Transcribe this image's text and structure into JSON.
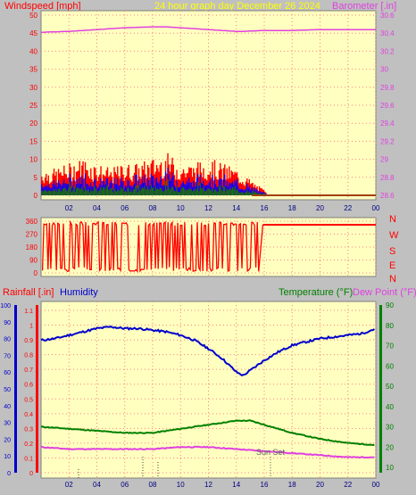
{
  "header": {
    "windspeed_label": "Windspeed [mph]",
    "title": "24 hour graph day   December 26 2024",
    "barometer_label": "Barometer [.in]"
  },
  "middle_panel": {
    "compass_labels": [
      "N",
      "W",
      "S",
      "E",
      "N"
    ]
  },
  "bottom_header": {
    "rainfall_label": "Rainfall [.in]",
    "humidity_label": "Humidity",
    "temperature_label": "Temperature (°F)",
    "dewpoint_label": "Dew Point (°F)"
  },
  "colors": {
    "plot_bg": "#ffffc0",
    "frame_bg": "#c0c0c0",
    "windspeed": "#ff0000",
    "windspeed_avg": "#0000ff",
    "windspeed_green": "#008000",
    "barometer": "#e040e0",
    "humidity": "#0000cc",
    "temperature": "#008000",
    "dewpoint": "#e040e0",
    "title": "#ffff00",
    "grid": "#ff8080"
  },
  "chart_data": [
    {
      "type": "area",
      "title": "24 hour graph day   December 26 2024",
      "x_ticks": [
        "02",
        "04",
        "06",
        "08",
        "10",
        "12",
        "14",
        "16",
        "18",
        "20",
        "22",
        "00"
      ],
      "y_left_ticks": [
        "0",
        "5",
        "10",
        "15",
        "20",
        "25",
        "30",
        "35",
        "40",
        "45",
        "50"
      ],
      "y_left_range": [
        0,
        50
      ],
      "y_left_label": "Windspeed [mph]",
      "y_right_ticks": [
        "28.6",
        "28.8",
        "29",
        "29.2",
        "29.4",
        "29.6",
        "29.8",
        "30",
        "30.2",
        "30.4",
        "30.6"
      ],
      "y_right_range": [
        28.6,
        30.6
      ],
      "y_right_label": "Barometer [.in]",
      "series": [
        {
          "name": "Windspeed",
          "axis": "left",
          "x_hours": [
            0,
            1,
            2,
            3,
            4,
            5,
            6,
            7,
            8,
            9,
            10,
            11,
            12,
            13,
            14,
            15,
            15.5,
            16,
            24
          ],
          "values": [
            5,
            5,
            6,
            7,
            6,
            5,
            6,
            6,
            7,
            8,
            6,
            6,
            7,
            6,
            5,
            3,
            2,
            1,
            0
          ]
        },
        {
          "name": "Barometer",
          "axis": "right",
          "x_hours": [
            0,
            2,
            4,
            6,
            8,
            9,
            10,
            12,
            14,
            14.5,
            16,
            18,
            20,
            22,
            24
          ],
          "values": [
            30.41,
            30.42,
            30.44,
            30.46,
            30.47,
            30.47,
            30.46,
            30.44,
            30.42,
            30.42,
            30.43,
            30.43,
            30.44,
            30.44,
            30.44
          ]
        }
      ],
      "grid": true
    },
    {
      "type": "scatter",
      "x_ticks": [
        "02",
        "04",
        "06",
        "08",
        "10",
        "12",
        "14",
        "16",
        "18",
        "20",
        "22",
        "00"
      ],
      "y_left_ticks": [
        "0",
        "90",
        "180",
        "270",
        "360"
      ],
      "y_left_range": [
        0,
        360
      ],
      "y_right_ticks": [
        "N",
        "W",
        "S",
        "E",
        "N"
      ],
      "series": [
        {
          "name": "Wind Direction",
          "x_hours": [
            0,
            0.5,
            1,
            1.5,
            2,
            2.5,
            3,
            3.5,
            4,
            4.5,
            5,
            5.5,
            6,
            6.5,
            7,
            7.5,
            8,
            8.5,
            9,
            9.5,
            10,
            10.5,
            11,
            11.5,
            12,
            12.5,
            13,
            13.5,
            14,
            14.5,
            15,
            15.5,
            16,
            17,
            18,
            19,
            20,
            21,
            22,
            23,
            24
          ],
          "values": [
            30,
            10,
            350,
            10,
            350,
            20,
            10,
            20,
            10,
            15,
            20,
            30,
            350,
            10,
            350,
            20,
            350,
            10,
            350,
            340,
            20,
            10,
            340,
            20,
            10,
            350,
            340,
            20,
            350,
            10,
            330,
            340,
            335,
            335,
            335,
            335,
            335,
            335,
            335,
            335,
            335
          ]
        }
      ],
      "grid": true
    },
    {
      "type": "line",
      "x_ticks": [
        "02",
        "04",
        "06",
        "08",
        "10",
        "12",
        "14",
        "16",
        "18",
        "20",
        "22",
        "00"
      ],
      "y_left_outer_ticks": [
        "0",
        "10",
        "20",
        "30",
        "40",
        "50",
        "60",
        "70",
        "80",
        "90",
        "100"
      ],
      "y_left_outer_label": "Humidity",
      "y_left_inner_ticks": [
        "0",
        "0.1",
        "0.2",
        "0.3",
        "0.4",
        "0.5",
        "0.6",
        "0.7",
        "0.8",
        "0.9",
        "1",
        "1.1"
      ],
      "y_left_inner_label": "Rainfall [.in]",
      "y_right_ticks": [
        "10",
        "20",
        "30",
        "40",
        "50",
        "60",
        "70",
        "80",
        "90"
      ],
      "y_right_label": "Temperature (°F)",
      "annotation": "Sun Set",
      "series": [
        {
          "name": "Humidity",
          "axis": "left_outer",
          "x_hours": [
            0,
            1,
            2,
            3,
            4,
            5,
            6,
            7,
            8,
            9,
            10,
            11,
            12,
            13,
            14,
            14.5,
            15,
            16,
            17,
            18,
            19,
            20,
            21,
            22,
            23,
            24
          ],
          "values": [
            79,
            80,
            82,
            84,
            86,
            87,
            86,
            86,
            85,
            84,
            82,
            79,
            74,
            68,
            60,
            58,
            61,
            67,
            72,
            76,
            78,
            80,
            81,
            82,
            83,
            86
          ]
        },
        {
          "name": "Temperature",
          "axis": "right",
          "x_hours": [
            0,
            2,
            4,
            6,
            8,
            10,
            12,
            14,
            15,
            16,
            18,
            20,
            22,
            24
          ],
          "values": [
            30,
            29,
            28,
            27,
            27,
            29,
            31,
            33,
            33,
            31,
            27,
            24,
            22,
            21
          ]
        },
        {
          "name": "Dew Point",
          "axis": "right",
          "x_hours": [
            0,
            2,
            4,
            6,
            8,
            10,
            12,
            14,
            16,
            18,
            20,
            22,
            24
          ],
          "values": [
            20,
            19,
            19,
            19,
            19,
            20,
            20,
            19,
            18,
            17,
            16,
            15,
            15
          ]
        },
        {
          "name": "Rainfall",
          "axis": "left_inner",
          "x_hours": [
            0,
            24
          ],
          "values": [
            0,
            0
          ]
        }
      ],
      "grid": true
    }
  ]
}
